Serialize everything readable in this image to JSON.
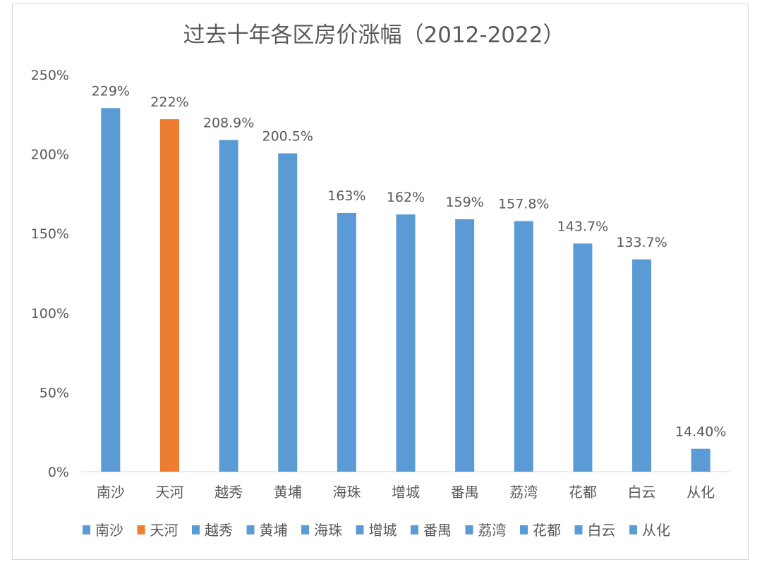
{
  "chart_data": {
    "type": "bar",
    "title": "过去十年各区房价涨幅（2012-2022）",
    "categories": [
      "南沙",
      "天河",
      "越秀",
      "黄埔",
      "海珠",
      "增城",
      "番禺",
      "荔湾",
      "花都",
      "白云",
      "从化"
    ],
    "values": [
      229,
      222,
      208.9,
      200.5,
      163,
      162,
      159,
      157.8,
      143.7,
      133.7,
      14.4
    ],
    "data_labels": [
      "229%",
      "222%",
      "208.9%",
      "200.5%",
      "163%",
      "162%",
      "159%",
      "157.8%",
      "143.7%",
      "133.7%",
      "14.40%"
    ],
    "unit": "%",
    "ylim": [
      0,
      250
    ],
    "yticks": [
      "0%",
      "50%",
      "100%",
      "150%",
      "200%",
      "250%"
    ],
    "grid": false,
    "legend": "bottom",
    "colors": {
      "default": "#5b9bd5",
      "highlight": "#ed7d31",
      "highlight_category": "天河"
    }
  }
}
